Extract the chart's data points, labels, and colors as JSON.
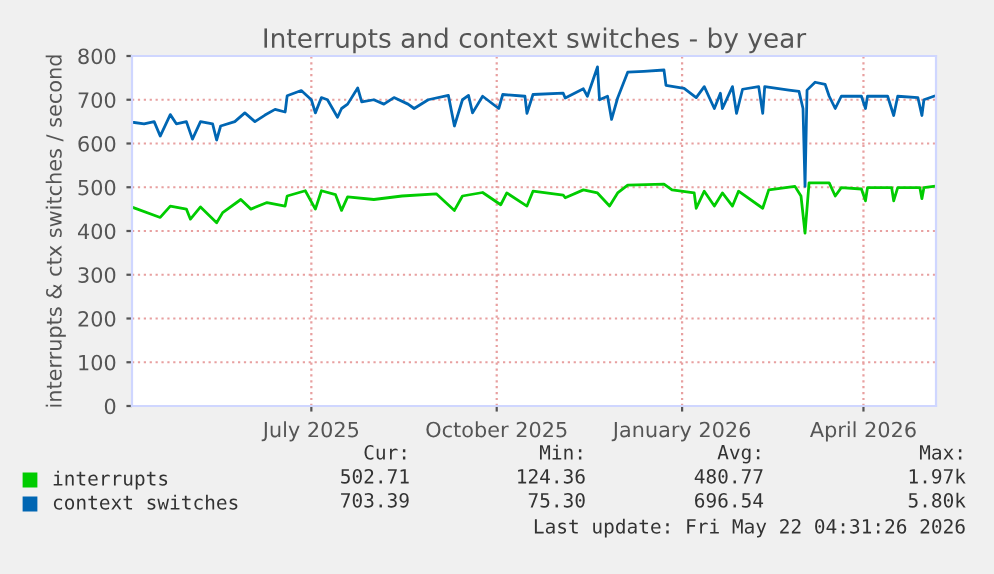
{
  "chart_data": {
    "type": "line",
    "title": "Interrupts and context switches - by year",
    "ylabel": "interrupts & ctx switches / second",
    "xlim": [
      "2025-04-18",
      "2026-05-22"
    ],
    "ylim": [
      0,
      800
    ],
    "yticks": [
      0,
      100,
      200,
      300,
      400,
      500,
      600,
      700,
      800
    ],
    "xticks": [
      {
        "value": "2025-07-16",
        "label": "July 2025"
      },
      {
        "value": "2025-10-16",
        "label": "October 2025"
      },
      {
        "value": "2026-01-16",
        "label": "January 2026"
      },
      {
        "value": "2026-04-16",
        "label": "April 2026"
      }
    ],
    "grid": true,
    "legend": "bottom",
    "marker": "none",
    "line_style": "solid",
    "series": [
      {
        "name": "interrupts",
        "color": "#00cc00",
        "x": [
          "2025-04-19",
          "2025-05-02",
          "2025-05-07",
          "2025-05-15",
          "2025-05-17",
          "2025-05-22",
          "2025-05-30",
          "2025-06-02",
          "2025-06-11",
          "2025-06-16",
          "2025-06-24",
          "2025-07-03",
          "2025-07-04",
          "2025-07-13",
          "2025-07-18",
          "2025-07-21",
          "2025-07-28",
          "2025-07-31",
          "2025-08-03",
          "2025-08-16",
          "2025-08-30",
          "2025-09-16",
          "2025-09-25",
          "2025-09-29",
          "2025-10-09",
          "2025-10-18",
          "2025-10-21",
          "2025-10-31",
          "2025-11-03",
          "2025-11-18",
          "2025-11-19",
          "2025-11-28",
          "2025-12-05",
          "2025-12-11",
          "2025-12-15",
          "2025-12-20",
          "2026-01-07",
          "2026-01-11",
          "2026-01-22",
          "2026-01-23",
          "2026-01-27",
          "2026-02-01",
          "2026-02-05",
          "2026-02-10",
          "2026-02-13",
          "2026-02-25",
          "2026-02-28",
          "2026-03-13",
          "2026-03-16",
          "2026-03-18",
          "2026-03-20",
          "2026-03-30",
          "2026-04-02",
          "2026-04-05",
          "2026-04-15",
          "2026-04-17",
          "2026-04-18",
          "2026-04-30",
          "2026-05-01",
          "2026-05-03",
          "2026-05-14",
          "2026-05-15",
          "2026-05-16",
          "2026-05-21"
        ],
        "values": [
          453,
          431,
          457,
          450,
          427,
          455,
          419,
          442,
          472,
          450,
          465,
          457,
          480,
          492,
          450,
          492,
          483,
          447,
          478,
          472,
          480,
          485,
          447,
          480,
          488,
          460,
          487,
          457,
          491,
          482,
          476,
          494,
          487,
          457,
          487,
          505,
          507,
          494,
          487,
          452,
          491,
          457,
          487,
          457,
          491,
          452,
          494,
          502,
          480,
          395,
          510,
          510,
          480,
          499,
          496,
          469,
          499,
          499,
          469,
          499,
          499,
          474,
          499,
          502
        ]
      },
      {
        "name": "context switches",
        "color": "#0066b3",
        "x": [
          "2025-04-19",
          "2025-04-24",
          "2025-04-29",
          "2025-05-02",
          "2025-05-07",
          "2025-05-10",
          "2025-05-15",
          "2025-05-18",
          "2025-05-22",
          "2025-05-28",
          "2025-05-30",
          "2025-06-01",
          "2025-06-08",
          "2025-06-13",
          "2025-06-18",
          "2025-06-23",
          "2025-06-28",
          "2025-07-03",
          "2025-07-04",
          "2025-07-11",
          "2025-07-16",
          "2025-07-18",
          "2025-07-21",
          "2025-07-24",
          "2025-07-29",
          "2025-07-31",
          "2025-08-03",
          "2025-08-08",
          "2025-08-10",
          "2025-08-16",
          "2025-08-21",
          "2025-08-26",
          "2025-09-02",
          "2025-09-05",
          "2025-09-12",
          "2025-09-22",
          "2025-09-25",
          "2025-09-29",
          "2025-10-02",
          "2025-10-04",
          "2025-10-09",
          "2025-10-17",
          "2025-10-19",
          "2025-10-30",
          "2025-10-31",
          "2025-11-03",
          "2025-11-18",
          "2025-11-19",
          "2025-11-28",
          "2025-11-30",
          "2025-12-05",
          "2025-12-06",
          "2025-12-10",
          "2025-12-12",
          "2025-12-15",
          "2025-12-20",
          "2025-12-28",
          "2026-01-07",
          "2026-01-08",
          "2026-01-17",
          "2026-01-23",
          "2026-01-27",
          "2026-02-01",
          "2026-02-04",
          "2026-02-05",
          "2026-02-10",
          "2026-02-12",
          "2026-02-15",
          "2026-02-23",
          "2026-02-25",
          "2026-02-26",
          "2026-03-10",
          "2026-03-15",
          "2026-03-17",
          "2026-03-18",
          "2026-03-19",
          "2026-03-23",
          "2026-03-28",
          "2026-03-30",
          "2026-04-02",
          "2026-04-05",
          "2026-04-15",
          "2026-04-17",
          "2026-04-18",
          "2026-04-28",
          "2026-05-01",
          "2026-05-03",
          "2026-05-13",
          "2026-05-15",
          "2026-05-16",
          "2026-05-21"
        ],
        "values": [
          648,
          645,
          650,
          617,
          666,
          645,
          650,
          610,
          650,
          645,
          608,
          640,
          650,
          670,
          650,
          665,
          678,
          672,
          709,
          721,
          700,
          670,
          705,
          700,
          660,
          680,
          690,
          727,
          695,
          700,
          690,
          705,
          690,
          680,
          700,
          710,
          640,
          700,
          710,
          670,
          708,
          680,
          712,
          708,
          669,
          712,
          715,
          704,
          725,
          708,
          775,
          700,
          708,
          655,
          704,
          763,
          765,
          768,
          733,
          726,
          705,
          730,
          680,
          715,
          680,
          730,
          669,
          724,
          730,
          669,
          730,
          722,
          719,
          680,
          502,
          722,
          740,
          735,
          708,
          680,
          708,
          708,
          680,
          708,
          708,
          664,
          708,
          705,
          664,
          700,
          708
        ]
      }
    ],
    "annotations": [
      "Cur:",
      "Min:",
      "Avg:",
      "Max:",
      "502.71",
      "124.36",
      "480.77",
      "1.97k",
      "703.39",
      "75.30",
      "696.54",
      "5.80k",
      "Last update: Fri May 22 04:31:26 2026"
    ]
  }
}
